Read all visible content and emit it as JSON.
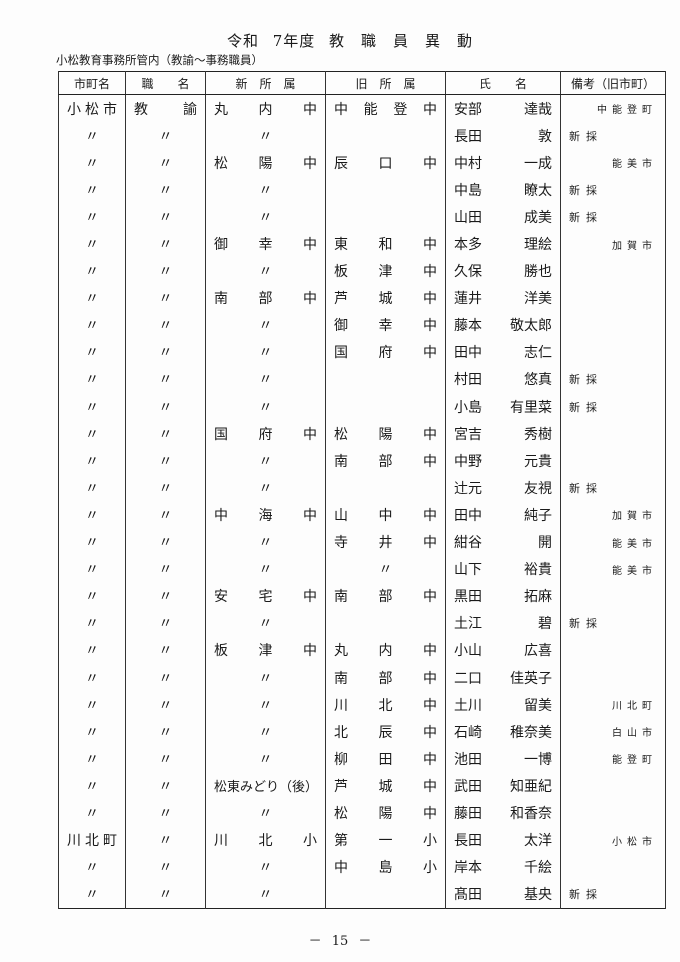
{
  "title": "令和 7年度 教　職　員　異　動",
  "subtitle": "小松教育事務所管内（教諭～事務職員）",
  "headers": [
    "市町名",
    "職　　名",
    "新　所　属",
    "旧　所　属",
    "氏　　名",
    "備考（旧市町）"
  ],
  "rows": [
    [
      "小松市",
      "教諭",
      "丸内中",
      "中能登中",
      "安部 達哉",
      "",
      "中能登町"
    ],
    [
      "〃",
      "〃",
      "〃",
      "",
      "長田 敦",
      "新採",
      ""
    ],
    [
      "〃",
      "〃",
      "松陽中",
      "辰口中",
      "中村 一成",
      "",
      "能美市"
    ],
    [
      "〃",
      "〃",
      "〃",
      "",
      "中島 瞭太",
      "新採",
      ""
    ],
    [
      "〃",
      "〃",
      "〃",
      "",
      "山田 成美",
      "新採",
      ""
    ],
    [
      "〃",
      "〃",
      "御幸中",
      "東和中",
      "本多 理絵",
      "",
      "加賀市"
    ],
    [
      "〃",
      "〃",
      "〃",
      "板津中",
      "久保 勝也",
      "",
      ""
    ],
    [
      "〃",
      "〃",
      "南部中",
      "芦城中",
      "蓮井 洋美",
      "",
      ""
    ],
    [
      "〃",
      "〃",
      "〃",
      "御幸中",
      "藤本 敬太郎",
      "",
      ""
    ],
    [
      "〃",
      "〃",
      "〃",
      "国府中",
      "田中 志仁",
      "",
      ""
    ],
    [
      "〃",
      "〃",
      "〃",
      "",
      "村田 悠真",
      "新採",
      ""
    ],
    [
      "〃",
      "〃",
      "〃",
      "",
      "小島 有里菜",
      "新採",
      ""
    ],
    [
      "〃",
      "〃",
      "国府中",
      "松陽中",
      "宮吉 秀樹",
      "",
      ""
    ],
    [
      "〃",
      "〃",
      "〃",
      "南部中",
      "中野 元貴",
      "",
      ""
    ],
    [
      "〃",
      "〃",
      "〃",
      "",
      "辻元 友視",
      "新採",
      ""
    ],
    [
      "〃",
      "〃",
      "中海中",
      "山中中",
      "田中 純子",
      "",
      "加賀市"
    ],
    [
      "〃",
      "〃",
      "〃",
      "寺井中",
      "紺谷 開",
      "",
      "能美市"
    ],
    [
      "〃",
      "〃",
      "〃",
      "〃",
      "山下 裕貴",
      "",
      "能美市"
    ],
    [
      "〃",
      "〃",
      "安宅中",
      "南部中",
      "黒田 拓麻",
      "",
      ""
    ],
    [
      "〃",
      "〃",
      "〃",
      "",
      "土江 碧",
      "新採",
      ""
    ],
    [
      "〃",
      "〃",
      "板津中",
      "丸内中",
      "小山 広喜",
      "",
      ""
    ],
    [
      "〃",
      "〃",
      "〃",
      "南部中",
      "二口 佳英子",
      "",
      ""
    ],
    [
      "〃",
      "〃",
      "〃",
      "川北中",
      "土川 留美",
      "",
      "川北町"
    ],
    [
      "〃",
      "〃",
      "〃",
      "北辰中",
      "石崎 稚奈美",
      "",
      "白山市"
    ],
    [
      "〃",
      "〃",
      "〃",
      "柳田中",
      "池田 一博",
      "",
      "能登町"
    ],
    [
      "〃",
      "〃",
      "松東みどり（後）",
      "芦城中",
      "武田 知亜紀",
      "",
      ""
    ],
    [
      "〃",
      "〃",
      "〃",
      "松陽中",
      "藤田 和香奈",
      "",
      ""
    ],
    [
      "川北町",
      "〃",
      "川北小",
      "第一小",
      "長田 太洋",
      "",
      "小松市"
    ],
    [
      "〃",
      "〃",
      "〃",
      "中島小",
      "岸本 千絵",
      "",
      ""
    ],
    [
      "〃",
      "〃",
      "〃",
      "",
      "髙田 基央",
      "新採",
      ""
    ]
  ],
  "footer": "－ 15 －"
}
